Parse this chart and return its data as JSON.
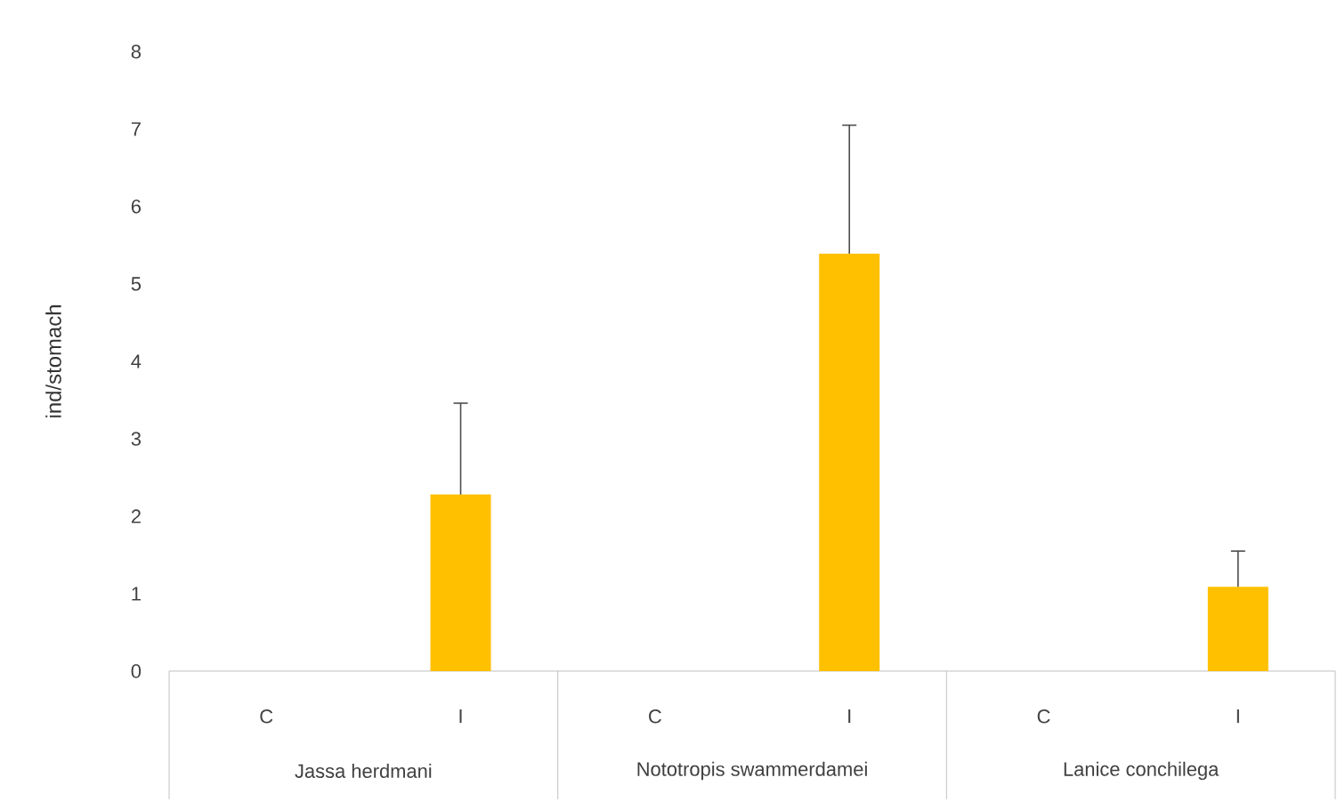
{
  "chart_data": {
    "type": "bar",
    "ylabel": "ind/stomach",
    "categories": [
      "C",
      "I",
      "C",
      "I",
      "C",
      "I"
    ],
    "series": [
      {
        "color": "#ffc000",
        "values": [
          null,
          2.28,
          null,
          5.39,
          null,
          1.09
        ],
        "errors": [
          null,
          [
            2.28,
            3.46
          ],
          null,
          [
            5.39,
            7.05
          ],
          null,
          [
            1.09,
            1.55
          ]
        ]
      }
    ],
    "annotations": [
      "Jassa herdmani",
      "Nototropis swammerdamei",
      "Lanice conchilega"
    ],
    "ylim": [
      0,
      8
    ],
    "yticks": [
      0,
      1,
      2,
      3,
      4,
      5,
      6,
      7,
      8
    ]
  }
}
